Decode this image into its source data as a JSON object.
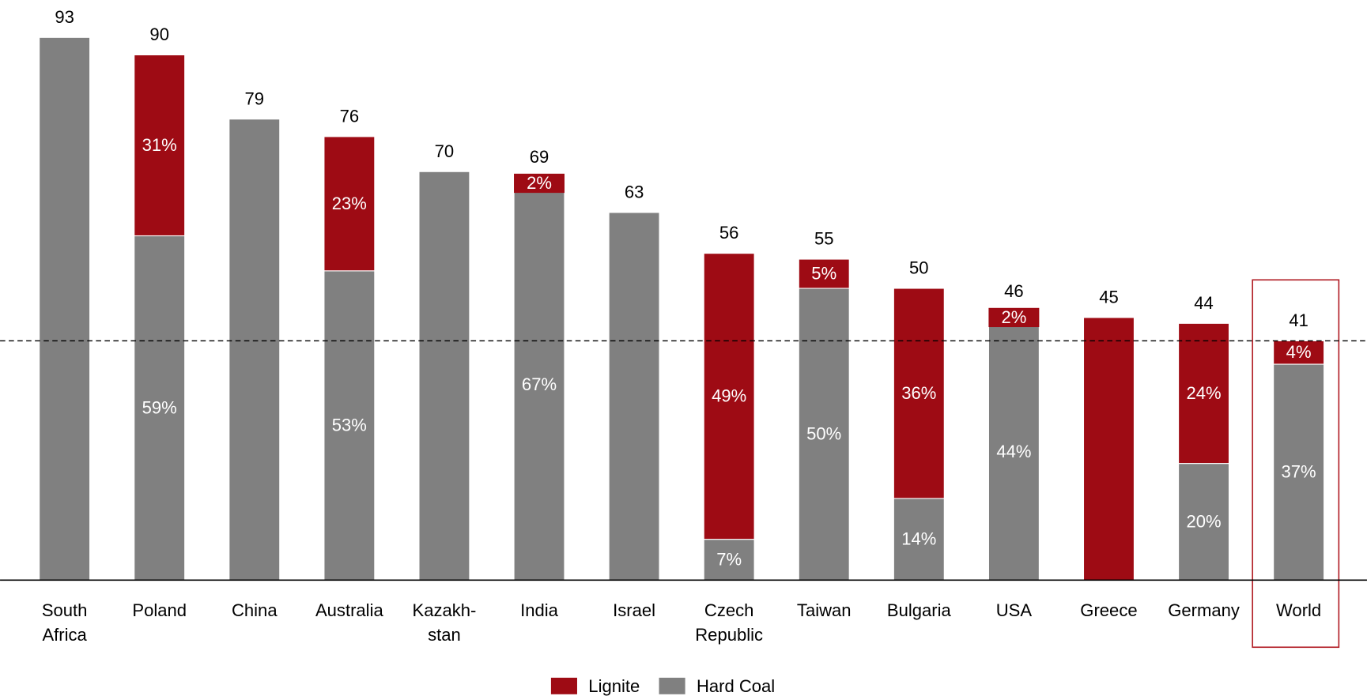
{
  "chart_data": {
    "type": "stacked_bar",
    "categories": [
      "South Africa",
      "Poland",
      "China",
      "Australia",
      "Kazakh-stan",
      "India",
      "Israel",
      "Czech Republic",
      "Taiwan",
      "Bulgaria",
      "USA",
      "Greece",
      "Germany",
      "World"
    ],
    "series": [
      {
        "name": "Hard Coal",
        "color": "#808080",
        "values": [
          93,
          59,
          79,
          53,
          70,
          67,
          63,
          7,
          50,
          14,
          44,
          null,
          20,
          37
        ],
        "value_labels": [
          null,
          "59%",
          null,
          "53%",
          null,
          "67%",
          null,
          "7%",
          "50%",
          "14%",
          "44%",
          null,
          "20%",
          "37%"
        ]
      },
      {
        "name": "Lignite",
        "color": "#9e0b14",
        "values": [
          null,
          31,
          null,
          23,
          null,
          2,
          null,
          49,
          5,
          36,
          2,
          45,
          24,
          4
        ],
        "value_labels": [
          null,
          "31%",
          null,
          "23%",
          null,
          "2%",
          null,
          "49%",
          "5%",
          "36%",
          "2%",
          null,
          "24%",
          "4%"
        ]
      }
    ],
    "totals": [
      93,
      90,
      79,
      76,
      70,
      69,
      63,
      56,
      55,
      50,
      46,
      45,
      44,
      41
    ],
    "ylim": [
      0,
      95
    ],
    "reference_line": 41,
    "highlight": "World",
    "legend": "bottom"
  }
}
